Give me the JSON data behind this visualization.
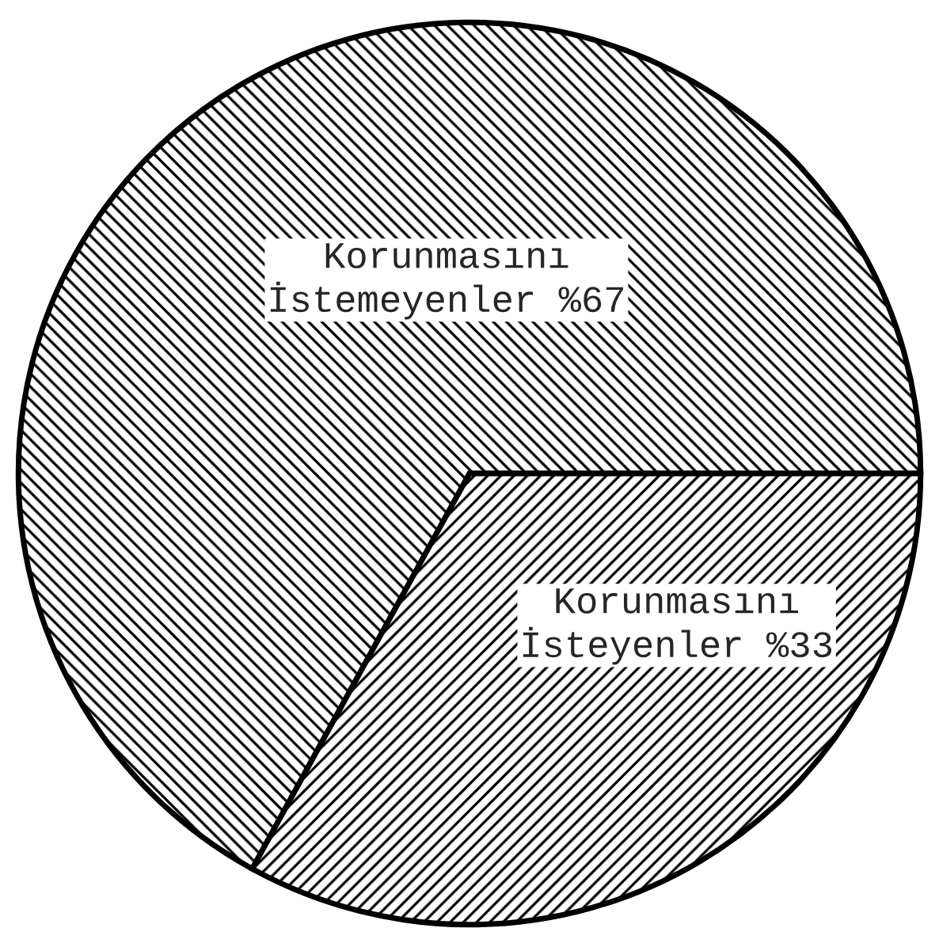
{
  "chart_data": {
    "type": "pie",
    "categories": [
      "Korunmasını\nİstemeyenler",
      "Korunmasını\nİsteyenler"
    ],
    "values": [
      67,
      33
    ],
    "value_labels": [
      "%67",
      "%33"
    ],
    "colors": [
      "#000000",
      "#000000"
    ]
  }
}
